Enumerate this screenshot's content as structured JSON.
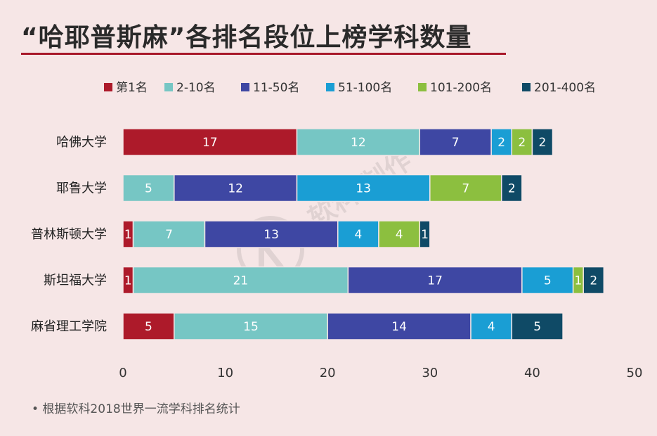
{
  "title": "“哈耶普斯麻”各排名段位上榜学科数量",
  "footnote": "• 根据软科2018世界一流学科排名统计",
  "watermark": "软科 制作",
  "chart_data": {
    "type": "bar",
    "orientation": "horizontal",
    "stacked": true,
    "categories": [
      "哈佛大学",
      "耶鲁大学",
      "普林斯顿大学",
      "斯坦福大学",
      "麻省理工学院"
    ],
    "series": [
      {
        "name": "第1名",
        "color": "#ad1a2a",
        "values": [
          17,
          0,
          1,
          1,
          5
        ]
      },
      {
        "name": "2-10名",
        "color": "#76c6c4",
        "values": [
          12,
          5,
          7,
          21,
          15
        ]
      },
      {
        "name": "11-50名",
        "color": "#3e47a3",
        "values": [
          7,
          12,
          13,
          17,
          14
        ]
      },
      {
        "name": "51-100名",
        "color": "#1a9ed4",
        "values": [
          2,
          13,
          4,
          5,
          4
        ]
      },
      {
        "name": "101-200名",
        "color": "#8cbf3f",
        "values": [
          2,
          7,
          4,
          1,
          0
        ]
      },
      {
        "name": "201-400名",
        "color": "#0f4a66",
        "values": [
          2,
          2,
          1,
          2,
          5
        ]
      }
    ],
    "xlim": [
      0,
      50
    ],
    "xticks": [
      0,
      10,
      20,
      30,
      40,
      50
    ],
    "legend_position": "top",
    "grid": false,
    "data_labels": true
  }
}
